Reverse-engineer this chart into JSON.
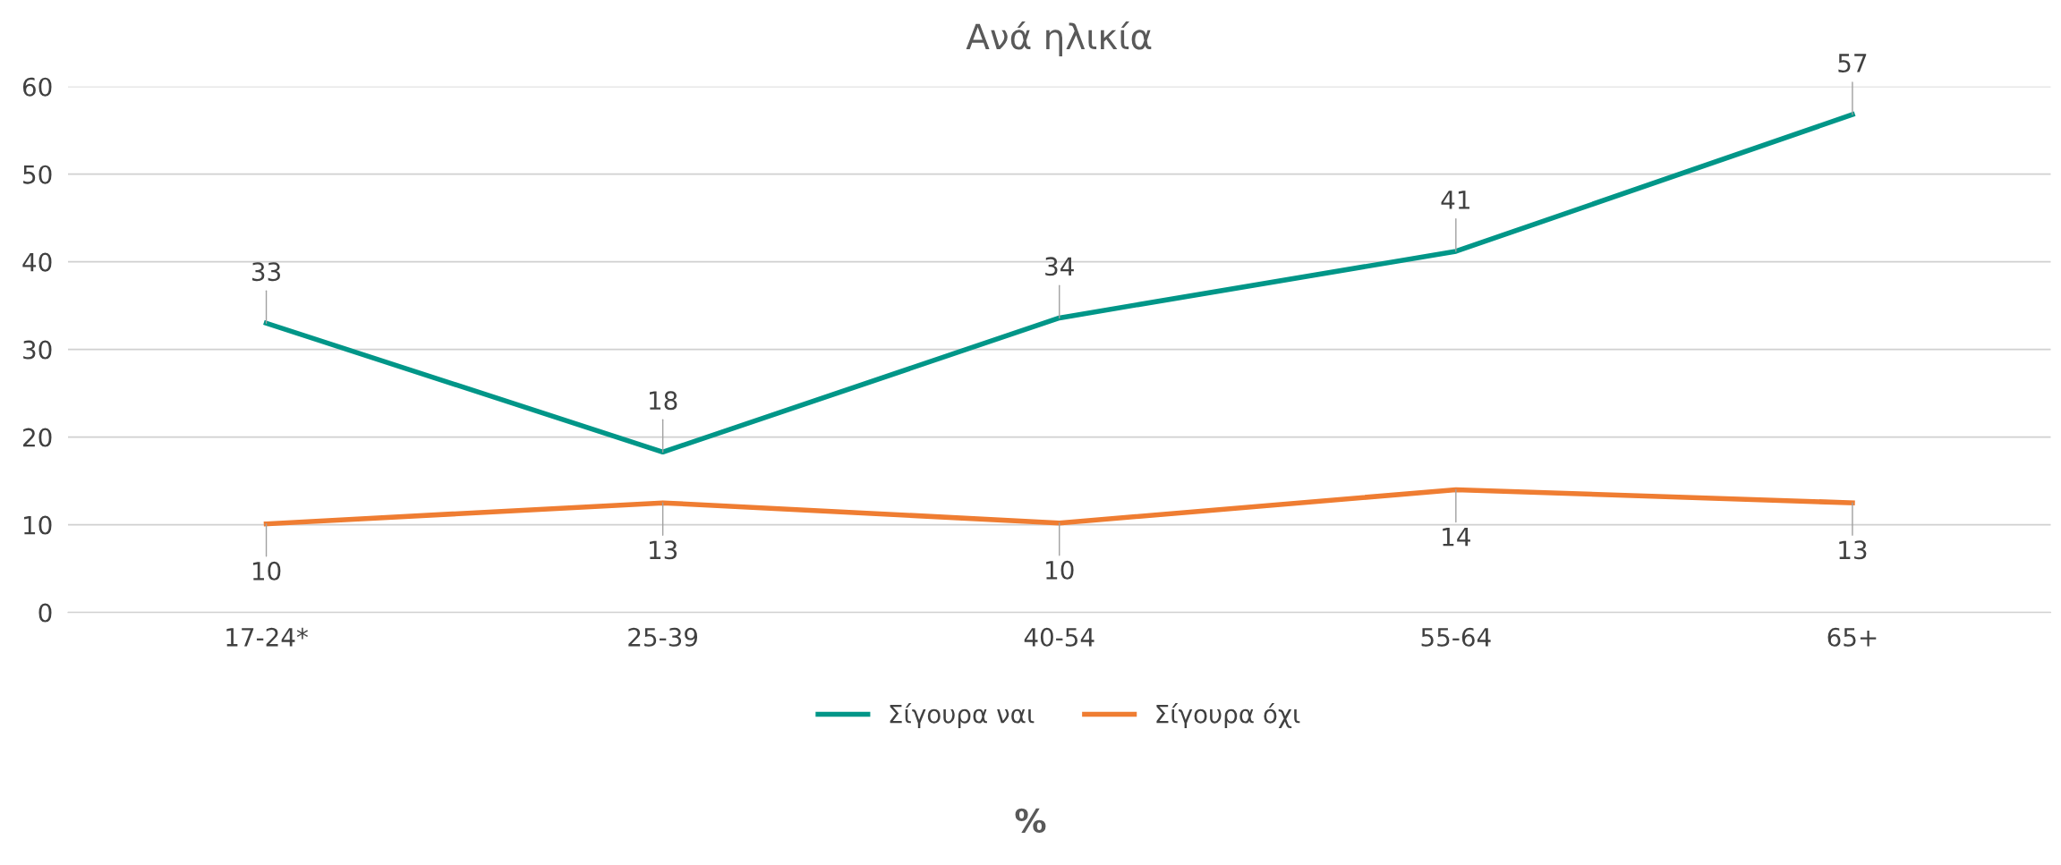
{
  "chart_data": {
    "type": "line",
    "title": "Ανά ηλικία",
    "annotations": [
      "%"
    ],
    "categories": [
      "17-24*",
      "25-39",
      "40-54",
      "55-64",
      "65+"
    ],
    "series": [
      {
        "name": "Σίγουρα ναι",
        "color": "#009688",
        "values": [
          33,
          18.3,
          33.6,
          41.2,
          56.8
        ],
        "value_labels": [
          "33",
          "18",
          "34",
          "41",
          "57"
        ]
      },
      {
        "name": "Σίγουρα όχι",
        "color": "#ef7d32",
        "values": [
          10.1,
          12.5,
          10.2,
          14,
          12.5
        ],
        "value_labels": [
          "10",
          "13",
          "10",
          "14",
          "13"
        ]
      }
    ],
    "ylim": [
      0,
      60
    ],
    "yticks": [
      0,
      10,
      20,
      30,
      40,
      50,
      60
    ],
    "grid": "y",
    "legend": "bottom",
    "marker": "none",
    "line_style": "solid"
  }
}
